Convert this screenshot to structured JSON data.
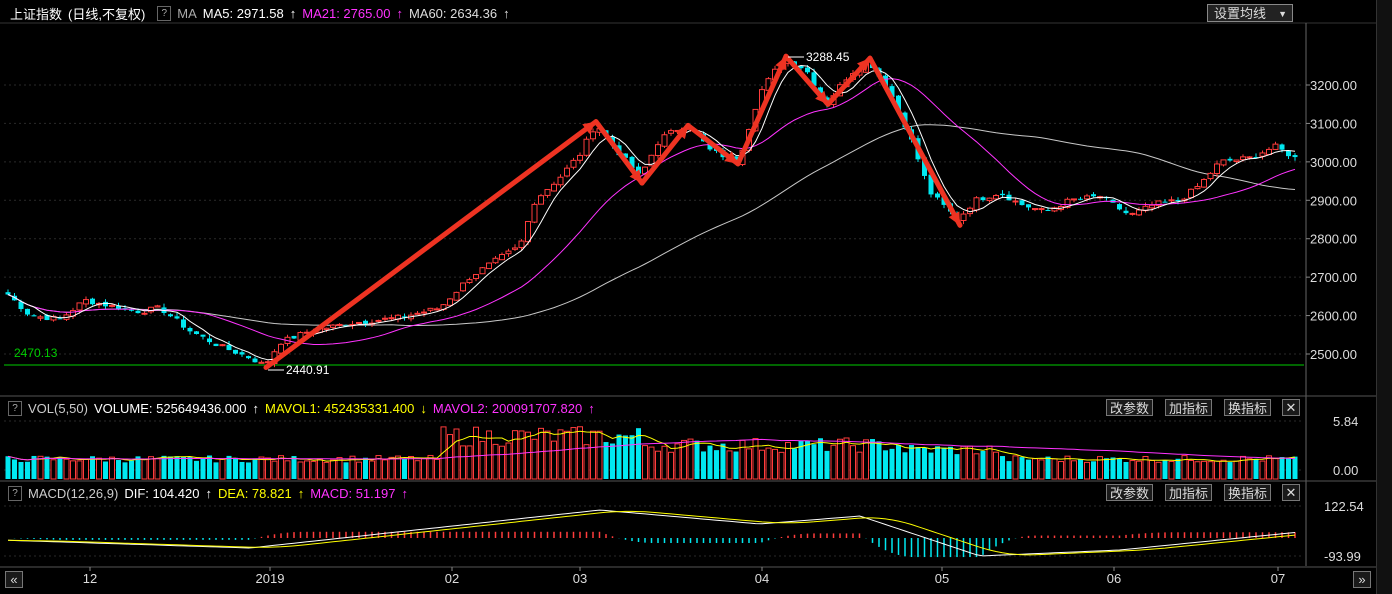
{
  "header": {
    "index_name": "上证指数",
    "mode": "(日线,不复权)",
    "ma_label": "MA",
    "ma5": "MA5: 2971.58",
    "ma21": "MA21: 2765.00",
    "ma60": "MA60: 2634.36",
    "ma_settings": "设置均线",
    "help_icon": "?"
  },
  "vol_header": {
    "label": "VOL(5,50)",
    "volume": "VOLUME: 525649436.000",
    "mavol1": "MAVOL1: 452435331.400",
    "mavol2": "MAVOL2: 200091707.820"
  },
  "macd_header": {
    "label": "MACD(12,26,9)",
    "dif": "DIF: 104.420",
    "dea": "DEA: 78.821",
    "macd": "MACD: 51.197"
  },
  "buttons": {
    "change_params": "改参数",
    "add_indicator": "加指标",
    "swap_indicator": "换指标",
    "close": "✕"
  },
  "nav": {
    "prev": "«",
    "next": "»"
  },
  "annotations": {
    "low_label": "2440.91",
    "high_label": "3288.45",
    "support_label": "2470.13"
  },
  "colors": {
    "up": "#ff3c3c",
    "down": "#00e8f0",
    "ma5": "#ffffff",
    "ma21": "#ff33ff",
    "ma60": "#c8c8c8",
    "mavol1": "#ffff00",
    "mavol2": "#ff33ff",
    "support": "#00cc00",
    "trend_arrow": "#ee3322"
  },
  "chart_data": [
    {
      "type": "candlestick",
      "x_ticks": [
        "12",
        "2019",
        "02",
        "03",
        "04",
        "05",
        "06",
        "07"
      ],
      "y_ticks": [
        "3200.00",
        "3100.00",
        "3000.00",
        "2900.00",
        "2800.00",
        "2700.00",
        "2600.00",
        "2500.00"
      ],
      "ylim": [
        2440,
        3300
      ],
      "support_level": 2470.13,
      "low": 2440.91,
      "high": 3288.45
    },
    {
      "type": "bar",
      "name": "VOL",
      "y_ticks": [
        "5.84",
        "0.00"
      ]
    },
    {
      "type": "bar",
      "name": "MACD",
      "y_ticks": [
        "122.54",
        "-93.99"
      ]
    }
  ]
}
